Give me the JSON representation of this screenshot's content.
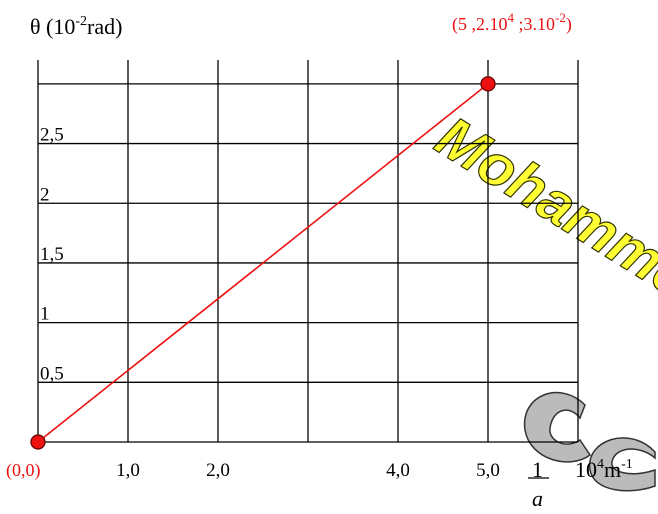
{
  "chart_data": {
    "type": "line",
    "ylabel": "θ (10",
    "ylabel_exp": "-2",
    "ylabel_unit": "rad)",
    "xlabel_num": "1",
    "xlabel_den": "a",
    "xlabel_unit": "10",
    "xlabel_unit_exp": "4",
    "xlabel_unit_tail": "m",
    "xlabel_unit_tail_exp": "-1",
    "x_ticks": [
      "1,0",
      "2,0",
      "4,0",
      "5,0"
    ],
    "y_ticks": [
      "0,5",
      "1",
      "1,5",
      "2",
      "2,5"
    ],
    "xlim": [
      0,
      6
    ],
    "ylim": [
      0,
      3.2
    ],
    "grid": true,
    "line_color": "#ee1111",
    "series": [
      {
        "x": [
          0,
          5
        ],
        "y": [
          0,
          3
        ]
      }
    ],
    "annotations": {
      "origin": "(0,0)",
      "end_prefix": "(5 ,2.10",
      "end_exp1": "4",
      "end_mid": " ;3.10",
      "end_exp2": "-2",
      "end_suffix": ")"
    }
  },
  "watermark": {
    "text": "Mohammed Sow"
  }
}
